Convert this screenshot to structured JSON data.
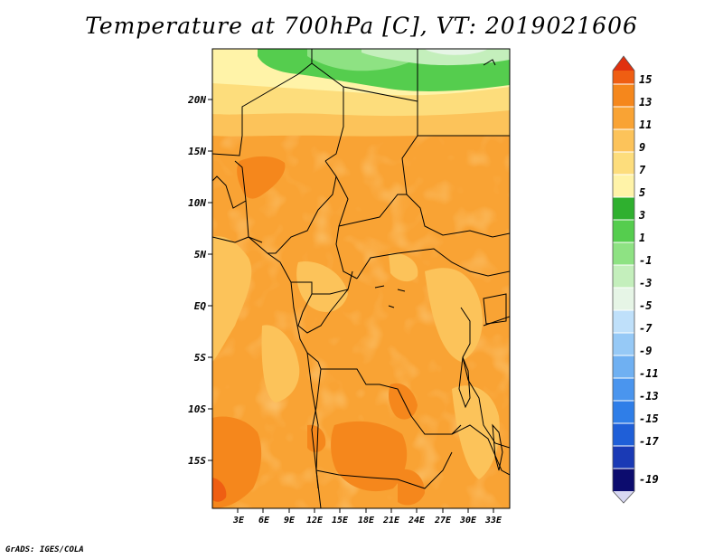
{
  "title": "Temperature at 700hPa [C], VT: 2019021606",
  "credit": "GrADS: IGES/COLA",
  "map": {
    "variable": "Temperature at 700hPa",
    "units": "C",
    "valid_time": "2019021606",
    "lat_labels": [
      "20N",
      "15N",
      "10N",
      "5N",
      "EQ",
      "5S",
      "10S",
      "15S"
    ],
    "lon_labels": [
      "3E",
      "6E",
      "9E",
      "12E",
      "15E",
      "18E",
      "21E",
      "24E",
      "27E",
      "30E",
      "33E"
    ]
  },
  "colorbar": {
    "labels": [
      "15",
      "13",
      "11",
      "9",
      "7",
      "5",
      "3",
      "1",
      "-1",
      "-3",
      "-5",
      "-7",
      "-9",
      "-11",
      "-13",
      "-15",
      "-17",
      "-19"
    ],
    "colors": [
      "#d7d7f2",
      "#0c0c6e",
      "#1a3ab5",
      "#1f5fd8",
      "#2f7ee8",
      "#4a95ee",
      "#6fb0f2",
      "#96c9f6",
      "#bfe0fa",
      "#e6f5e6",
      "#c4efbc",
      "#8ee283",
      "#55cd4e",
      "#2fb02f",
      "#fff3a8",
      "#fddd7c",
      "#fcc35a",
      "#f9a334",
      "#f5871c",
      "#ef5e12",
      "#e0310f"
    ]
  },
  "colors": {
    "frame": "#000000"
  }
}
